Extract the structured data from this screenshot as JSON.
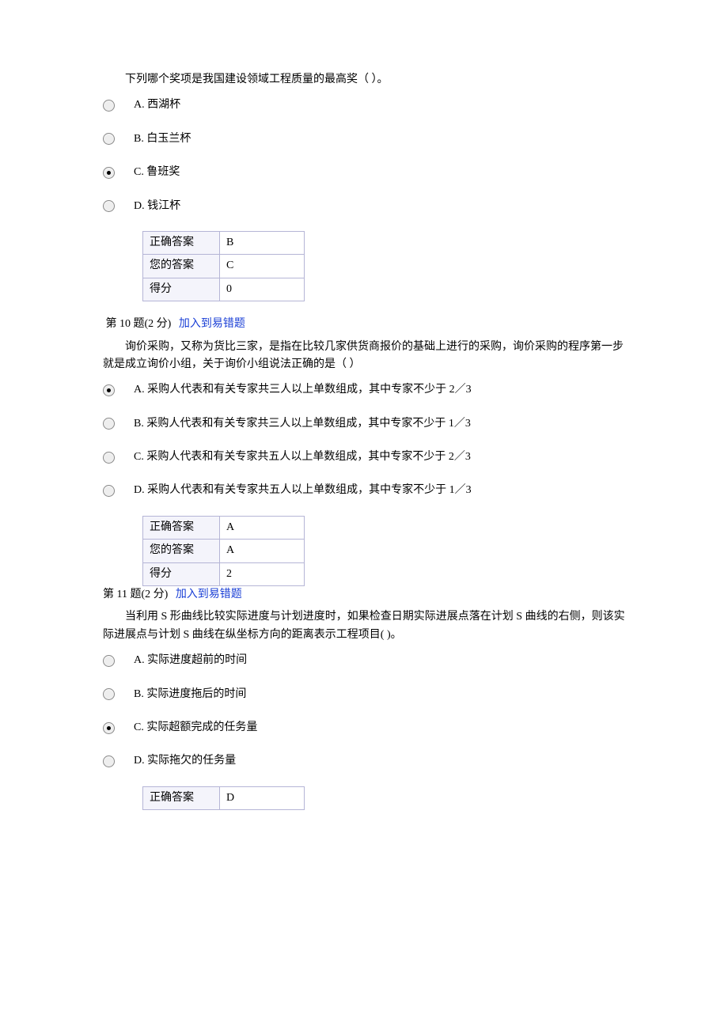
{
  "q9": {
    "text": "下列哪个奖项是我国建设领域工程质量的最高奖（    ）。",
    "options": {
      "A": "A. 西湖杯",
      "B": "B.  白玉兰杯",
      "C": "C. 鲁班奖",
      "D": "D. 钱江杯"
    },
    "selected": "C",
    "answer": {
      "correct_label": "正确答案",
      "correct_value": "B",
      "your_label": "您的答案",
      "your_value": "C",
      "score_label": "得分",
      "score_value": "0"
    }
  },
  "q10": {
    "number_text": "第 10 题(2 分)",
    "add_link": "加入到易错题",
    "text": "询价采购，又称为货比三家，是指在比较几家供货商报价的基础上进行的采购，询价采购的程序第一步就是成立询价小组，关于询价小组说法正确的是（    ）",
    "options": {
      "A": "A. 采购人代表和有关专家共三人以上单数组成，其中专家不少于 2／3",
      "B": "B. 采购人代表和有关专家共三人以上单数组成，其中专家不少于 1／3",
      "C": "C. 采购人代表和有关专家共五人以上单数组成，其中专家不少于 2／3",
      "D": "D. 采购人代表和有关专家共五人以上单数组成，其中专家不少于 1／3"
    },
    "selected": "A",
    "answer": {
      "correct_label": "正确答案",
      "correct_value": "A",
      "your_label": "您的答案",
      "your_value": "A",
      "score_label": "得分",
      "score_value": "2"
    }
  },
  "q11": {
    "number_text": "第 11 题(2 分)",
    "add_link": "加入到易错题",
    "text": "当利用 S 形曲线比较实际进度与计划进度时，如果检查日期实际进展点落在计划 S 曲线的右侧，则该实际进展点与计划 S 曲线在纵坐标方向的距离表示工程项目(      )。",
    "options": {
      "A": "A. 实际进度超前的时间",
      "B": "B. 实际进度拖后的时间",
      "C": "C. 实际超额完成的任务量",
      "D": "D.  实际拖欠的任务量"
    },
    "selected": "C",
    "answer": {
      "correct_label": "正确答案",
      "correct_value": "D"
    }
  }
}
